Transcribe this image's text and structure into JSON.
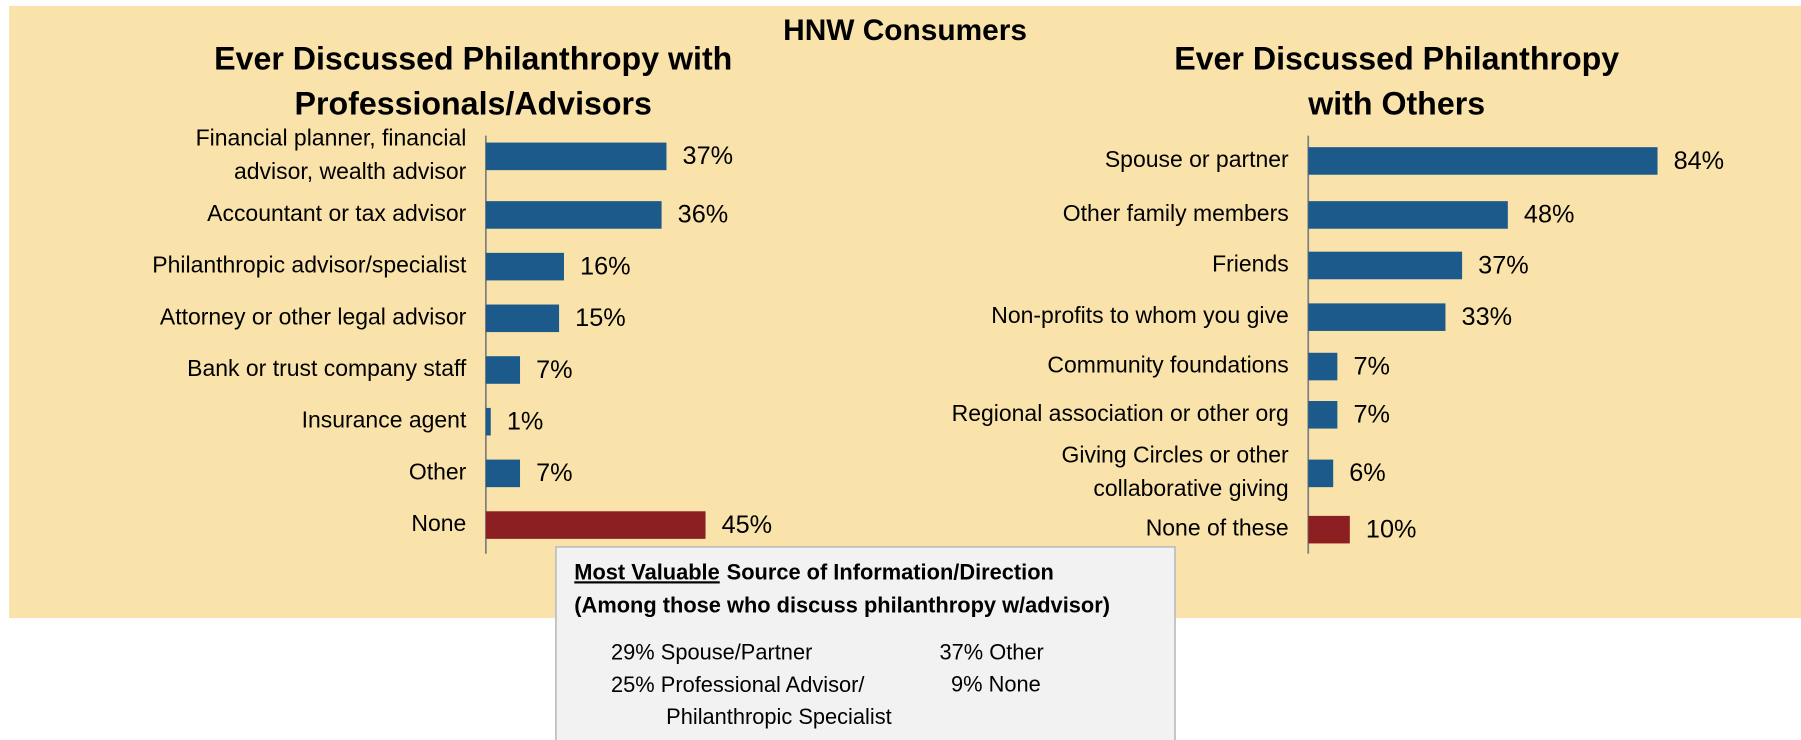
{
  "title": "HNW Consumers",
  "chart_data": [
    {
      "type": "hbar",
      "title": [
        "Ever Discussed Philanthropy with",
        "Professionals/Advisors"
      ],
      "categories": [
        "Financial planner, financial\nadvisor, wealth advisor",
        "Accountant or tax advisor",
        "Philanthropic advisor/specialist",
        "Attorney or other legal advisor",
        "Bank or trust company staff",
        "Insurance agent",
        "Other",
        "None"
      ],
      "values": [
        37,
        36,
        16,
        15,
        7,
        1,
        7,
        45
      ],
      "value_labels": [
        "37%",
        "36%",
        "16%",
        "15%",
        "7%",
        "1%",
        "7%",
        "45%"
      ],
      "colors": [
        "#1b5a8b",
        "#1b5a8b",
        "#1b5a8b",
        "#1b5a8b",
        "#1b5a8b",
        "#1b5a8b",
        "#1b5a8b",
        "#8c1f22"
      ],
      "xlim": [
        0,
        100
      ]
    },
    {
      "type": "hbar",
      "title": [
        "Ever Discussed Philanthropy",
        "with Others"
      ],
      "categories": [
        "Spouse or partner",
        "Other family members",
        "Friends",
        "Non-profits to whom you give",
        "Community foundations",
        "Regional association or other org",
        "Giving Circles or other\ncollaborative giving",
        "None of these"
      ],
      "values": [
        84,
        48,
        37,
        33,
        7,
        7,
        6,
        10
      ],
      "value_labels": [
        "84%",
        "48%",
        "37%",
        "33%",
        "7%",
        "7%",
        "6%",
        "10%"
      ],
      "colors": [
        "#1b5a8b",
        "#1b5a8b",
        "#1b5a8b",
        "#1b5a8b",
        "#1b5a8b",
        "#1b5a8b",
        "#1b5a8b",
        "#8c1f22"
      ],
      "xlim": [
        0,
        100
      ]
    }
  ],
  "note": {
    "title_underlined": "Most Valuable",
    "title_rest": "Source of Information/Direction",
    "subtitle": "(Among those who discuss philanthropy w/advisor)",
    "items": [
      "29% Spouse/Partner",
      "37% Other",
      "25% Professional Advisor/\nPhilanthropic Specialist",
      "9% None"
    ]
  }
}
